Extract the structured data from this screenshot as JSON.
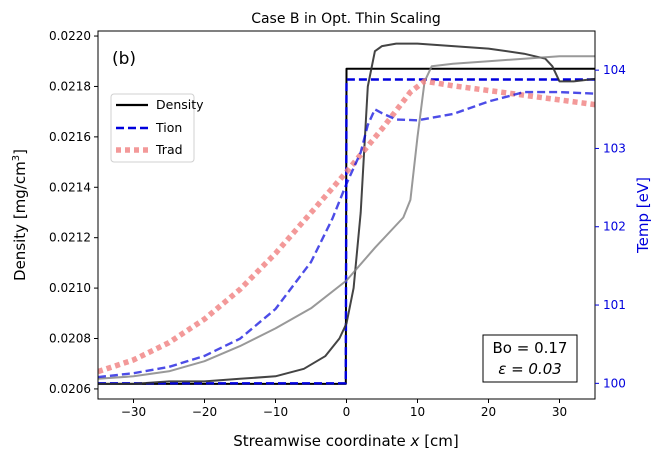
{
  "chart_data": {
    "type": "line",
    "title": "Case B in Opt. Thin Scaling",
    "panel_label": "(b)",
    "xlabel": "Streamwise coordinate x [cm]",
    "xlabel_parts": {
      "pre": "Streamwise coordinate ",
      "var": "x",
      "post": " [cm]"
    },
    "ylabel_left": "Density [mg/cm3]",
    "ylabel_left_parts": {
      "pre": "Density [mg/cm",
      "sup": "3",
      "post": "]"
    },
    "ylabel_right": "Temp [eV]",
    "xlim": [
      -35,
      35
    ],
    "ylim_left": [
      0.02056,
      0.02202
    ],
    "ylim_right": [
      99.8,
      104.5
    ],
    "xticks": [
      -30,
      -20,
      -10,
      0,
      10,
      20,
      30
    ],
    "xtick_labels": [
      "−30",
      "−20",
      "−10",
      "0",
      "10",
      "20",
      "30"
    ],
    "yticks_left": [
      0.0206,
      0.0208,
      0.021,
      0.0212,
      0.0214,
      0.0216,
      0.0218,
      0.022
    ],
    "ytick_labels_left": [
      "0.0206",
      "0.0208",
      "0.0210",
      "0.0212",
      "0.0214",
      "0.0216",
      "0.0218",
      "0.0220"
    ],
    "yticks_right": [
      100,
      101,
      102,
      103,
      104
    ],
    "ytick_labels_right": [
      "100",
      "101",
      "102",
      "103",
      "104"
    ],
    "legend_position": "upper-left",
    "legend": [
      {
        "label": "Density",
        "color": "#000000",
        "style": "solid"
      },
      {
        "label": "Tion",
        "color": "#0000dd",
        "style": "dashed"
      },
      {
        "label": "Trad",
        "color": "#f08080",
        "style": "dotted"
      }
    ],
    "annotation": {
      "line1": "Bo = 0.17",
      "line2": "ε = 0.03"
    },
    "series": [
      {
        "name": "Density (reference jump)",
        "axis": "left",
        "color": "#000000",
        "style": "solid",
        "opacity": 1.0,
        "width": 2,
        "x": [
          -35,
          -0.1,
          0,
          35
        ],
        "y": [
          0.02062,
          0.02062,
          0.02187,
          0.02187
        ]
      },
      {
        "name": "Tion (reference jump)",
        "axis": "right",
        "color": "#0000dd",
        "style": "dashed",
        "opacity": 1.0,
        "width": 2.4,
        "x": [
          -35,
          -0.1,
          0,
          35
        ],
        "y": [
          100.0,
          100.0,
          103.88,
          103.88
        ]
      },
      {
        "name": "Density (model, dark)",
        "axis": "left",
        "color": "#303030",
        "style": "solid",
        "opacity": 0.9,
        "width": 2,
        "x": [
          -35,
          -30,
          -25,
          -20,
          -15,
          -10,
          -6,
          -3,
          -1,
          0,
          1,
          2,
          3,
          4,
          5,
          7,
          10,
          15,
          20,
          25,
          28,
          29,
          30,
          32,
          35
        ],
        "y": [
          0.02062,
          0.02062,
          0.02063,
          0.02063,
          0.02064,
          0.02065,
          0.02068,
          0.02073,
          0.0208,
          0.02086,
          0.021,
          0.0213,
          0.0218,
          0.02194,
          0.02196,
          0.02197,
          0.02197,
          0.02196,
          0.02195,
          0.02193,
          0.02191,
          0.02188,
          0.02182,
          0.02182,
          0.02183
        ]
      },
      {
        "name": "Density (model, grey)",
        "axis": "left",
        "color": "#808080",
        "style": "solid",
        "opacity": 0.8,
        "width": 2,
        "x": [
          -35,
          -30,
          -25,
          -20,
          -15,
          -10,
          -5,
          0,
          4,
          8,
          9,
          10,
          11,
          12,
          15,
          20,
          25,
          30,
          35
        ],
        "y": [
          0.02064,
          0.02065,
          0.02067,
          0.02071,
          0.02077,
          0.02084,
          0.02092,
          0.02103,
          0.02116,
          0.02128,
          0.02135,
          0.0216,
          0.02182,
          0.02188,
          0.02189,
          0.0219,
          0.02191,
          0.02192,
          0.02192
        ]
      },
      {
        "name": "Trad",
        "axis": "right",
        "color": "#f08080",
        "style": "dotted",
        "opacity": 0.8,
        "width": 5.5,
        "x": [
          -35,
          -30,
          -25,
          -20,
          -15,
          -10,
          -5,
          0,
          5,
          9,
          11,
          15,
          20,
          25,
          30,
          35
        ],
        "y": [
          100.15,
          100.3,
          100.52,
          100.82,
          101.2,
          101.66,
          102.18,
          102.7,
          103.25,
          103.72,
          103.86,
          103.8,
          103.74,
          103.68,
          103.62,
          103.56
        ]
      },
      {
        "name": "Tion (model)",
        "axis": "right",
        "color": "#0000dd",
        "style": "dashed",
        "opacity": 0.7,
        "width": 2.4,
        "x": [
          -35,
          -30,
          -25,
          -20,
          -15,
          -10,
          -5,
          -2,
          0,
          2,
          3,
          4,
          5,
          7,
          10,
          15,
          20,
          25,
          30,
          35
        ],
        "y": [
          100.08,
          100.13,
          100.21,
          100.35,
          100.57,
          100.95,
          101.55,
          102.1,
          102.55,
          102.95,
          103.3,
          103.5,
          103.45,
          103.37,
          103.36,
          103.44,
          103.6,
          103.72,
          103.72,
          103.7
        ]
      }
    ]
  }
}
